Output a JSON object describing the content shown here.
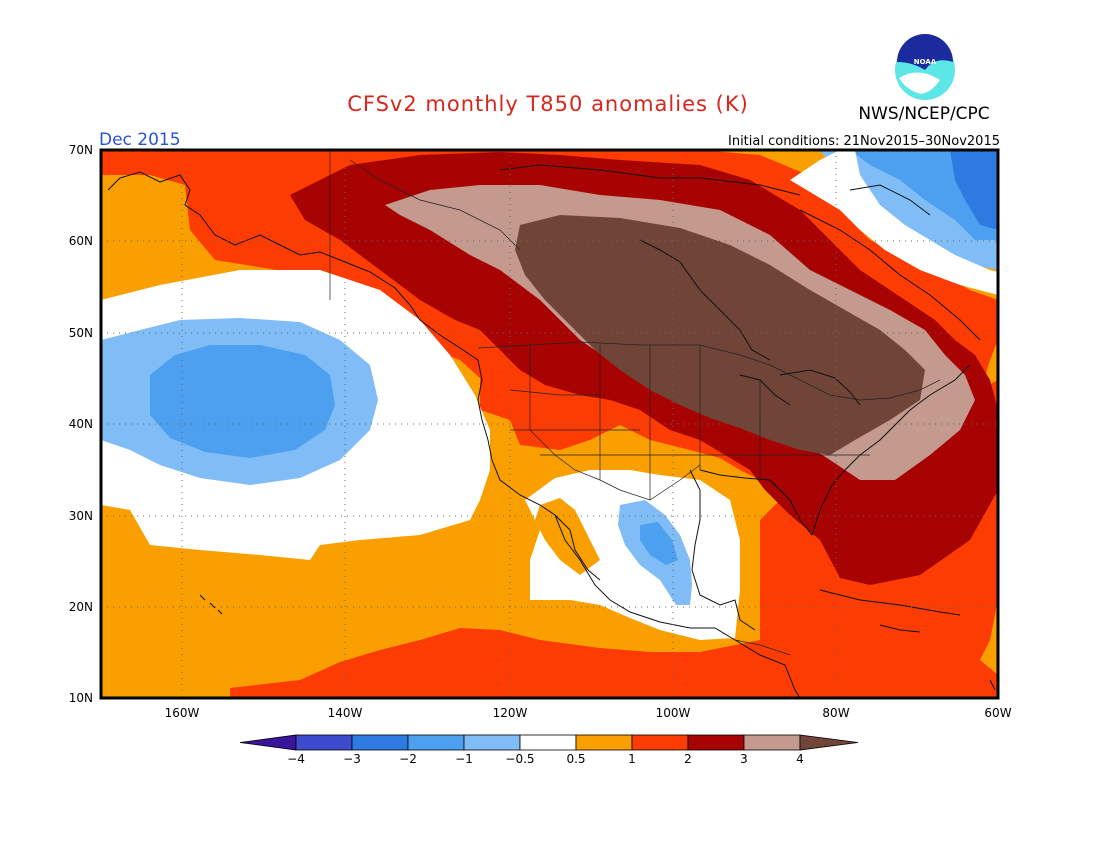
{
  "header": {
    "title": "CFSv2 monthly T850 anomalies (K)",
    "valid_month": "Dec 2015",
    "initial_conditions": "Initial conditions: 21Nov2015–30Nov2015",
    "agency": "NWS/NCEP/CPC",
    "logo_text": "NOAA"
  },
  "map": {
    "lon_range": [
      -172,
      -60
    ],
    "lat_range": [
      10,
      70
    ],
    "lat_labels": [
      "70N",
      "60N",
      "50N",
      "40N",
      "30N",
      "20N",
      "10N"
    ],
    "lon_labels": [
      "160W",
      "140W",
      "120W",
      "100W",
      "80W",
      "60W"
    ],
    "gridlines": "dotted every 20° longitude and 10° latitude"
  },
  "colors": {
    "title": "#d8261c",
    "month": "#2a52d8",
    "cat_m4": "#3a149c",
    "cat_m3": "#3c4ccc",
    "cat_m2": "#2d7be0",
    "cat_m1": "#4da0f0",
    "cat_m05": "#80bcf5",
    "cat_0": "#ffffff",
    "cat_05": "#f9a000",
    "cat_1": "#fc3c02",
    "cat_2": "#a80303",
    "cat_3": "#c49a8e",
    "cat_4": "#704538"
  },
  "legend": {
    "labels": [
      "−4",
      "−3",
      "−2",
      "−1",
      "−0.5",
      "0.5",
      "1",
      "2",
      "3",
      "4"
    ],
    "colors": [
      "#3a149c",
      "#3c4ccc",
      "#2d7be0",
      "#4da0f0",
      "#80bcf5",
      "#ffffff",
      "#f9a000",
      "#fc3c02",
      "#a80303",
      "#c49a8e",
      "#704538"
    ]
  }
}
